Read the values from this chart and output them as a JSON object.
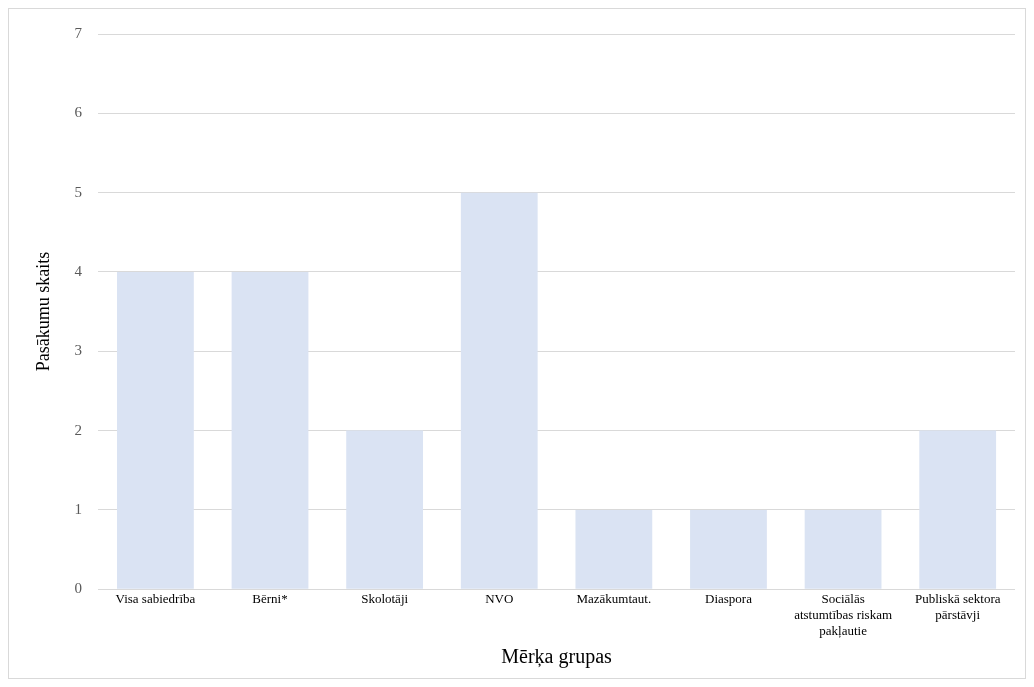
{
  "chart_data": {
    "type": "bar",
    "xlabel": "Mērķa grupas",
    "ylabel": "Pasākumu skaits",
    "categories": [
      "Visa sabiedrība",
      "Bērni*",
      "Skolotāji",
      "NVO",
      "Mazākumtaut.",
      "Diaspora",
      "Sociālās atstumtības riskam pakļautie",
      "Publiskā sektora pārstāvji"
    ],
    "values": [
      4,
      4,
      2,
      5,
      1,
      1,
      1,
      2
    ],
    "color": "#dae3f3",
    "ylim": [
      0,
      7
    ],
    "yticks": [
      0,
      1,
      2,
      3,
      4,
      5,
      6,
      7
    ],
    "grid": "y",
    "legend": false
  }
}
